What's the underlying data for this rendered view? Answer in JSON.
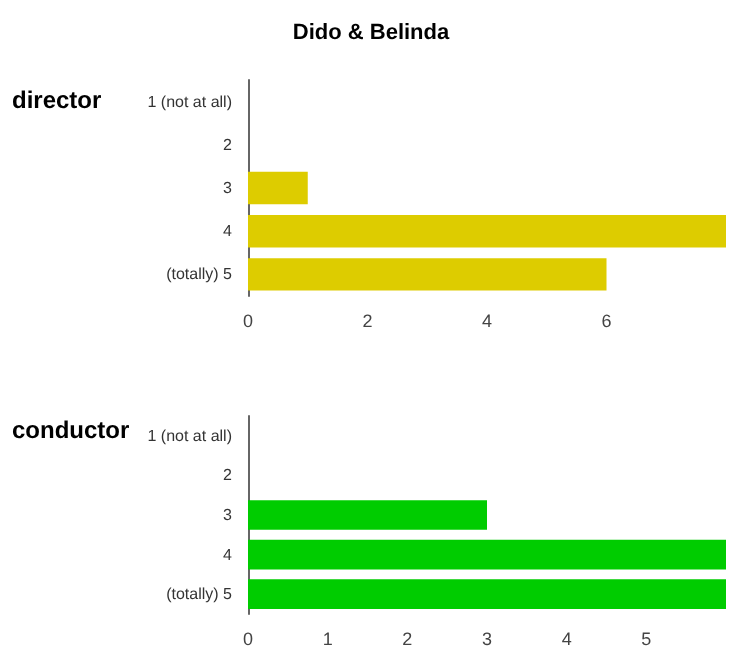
{
  "chart_data": [
    {
      "type": "bar",
      "title": "Dido & Belinda",
      "ylabel": "director",
      "orientation": "horizontal",
      "categories": [
        "1 (not at all)",
        "2",
        "3",
        "4",
        "(totally) 5"
      ],
      "series": [
        {
          "color": "#ddcc00",
          "values": [
            0,
            0,
            1,
            8,
            6
          ]
        }
      ],
      "xlim": [
        0,
        8
      ],
      "xticks": [
        0,
        2,
        4,
        6
      ]
    },
    {
      "type": "bar",
      "ylabel": "conductor",
      "orientation": "horizontal",
      "categories": [
        "1 (not at all)",
        "2",
        "3",
        "4",
        "(totally) 5"
      ],
      "series": [
        {
          "color": "#00cc00",
          "values": [
            0,
            0,
            3,
            6,
            6
          ]
        }
      ],
      "xlim": [
        0,
        6
      ],
      "xticks": [
        0,
        1,
        2,
        3,
        4,
        5
      ]
    }
  ]
}
